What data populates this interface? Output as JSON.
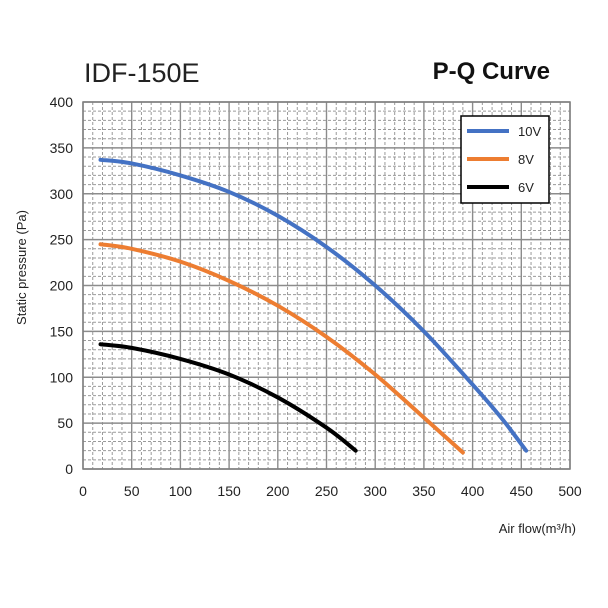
{
  "model": "IDF-150E",
  "chart_data": {
    "type": "line",
    "title": "P-Q Curve",
    "xlabel": "Air flow(m³/h)",
    "ylabel": "Static pressure (Pa)",
    "xlim": [
      0,
      500
    ],
    "ylim": [
      0,
      400
    ],
    "xticks": [
      0,
      50,
      100,
      150,
      200,
      250,
      300,
      350,
      400,
      450,
      500
    ],
    "yticks": [
      0,
      50,
      100,
      150,
      200,
      250,
      300,
      350,
      400
    ],
    "grid": true,
    "legend_position": "top-right",
    "series": [
      {
        "name": "10V",
        "color": "#4472C4",
        "x": [
          18,
          50,
          100,
          150,
          200,
          250,
          300,
          350,
          400,
          430,
          455
        ],
        "y": [
          337,
          333,
          320,
          302,
          276,
          242,
          200,
          150,
          92,
          55,
          20
        ]
      },
      {
        "name": "8V",
        "color": "#ED7D31",
        "x": [
          18,
          50,
          100,
          150,
          200,
          250,
          300,
          350,
          390
        ],
        "y": [
          245,
          240,
          226,
          205,
          178,
          144,
          103,
          56,
          18
        ]
      },
      {
        "name": "6V",
        "color": "#000000",
        "x": [
          18,
          50,
          100,
          150,
          200,
          250,
          280
        ],
        "y": [
          136,
          132,
          120,
          103,
          78,
          45,
          20
        ]
      }
    ]
  }
}
